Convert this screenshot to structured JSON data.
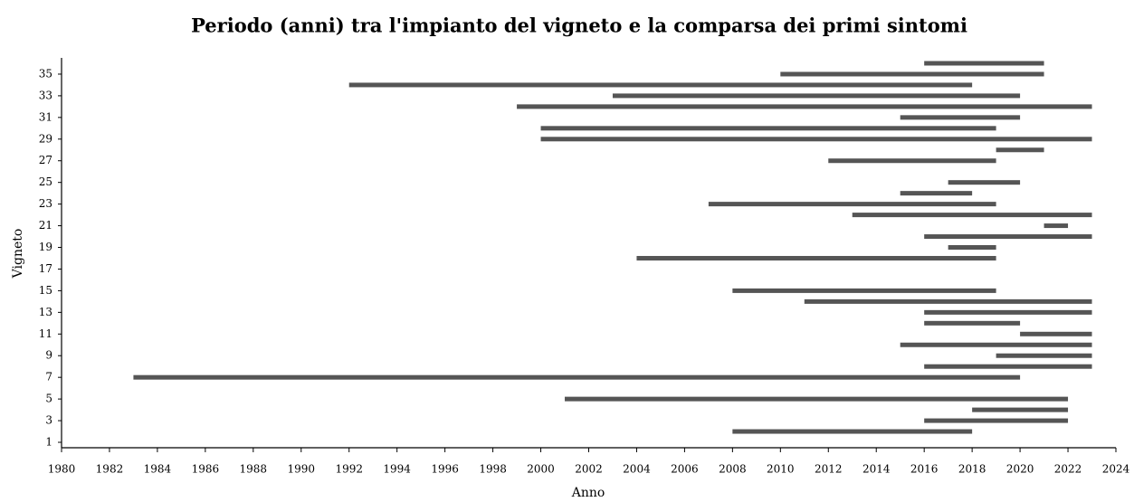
{
  "chart_data": {
    "type": "range-bar",
    "title": "Periodo (anni) tra l'impianto del vigneto e la comparsa dei primi sintomi",
    "x_label": "Anno",
    "y_label": "Vigneto",
    "y": [
      2,
      3,
      4,
      5,
      7,
      8,
      9,
      10,
      11,
      12,
      13,
      14,
      15,
      18,
      19,
      20,
      21,
      22,
      23,
      24,
      25,
      27,
      28,
      29,
      30,
      31,
      32,
      33,
      34,
      35,
      36
    ],
    "start": [
      2008,
      2016,
      2018,
      2001,
      1983,
      2016,
      2019,
      2015,
      2020,
      2016,
      2016,
      2011,
      2008,
      2004,
      2017,
      2016,
      2021,
      2013,
      2007,
      2015,
      2017,
      2012,
      2019,
      2000,
      2000,
      2015,
      1999,
      2003,
      1992,
      2010,
      2016
    ],
    "end": [
      2018,
      2022,
      2022,
      2022,
      2020,
      2023,
      2023,
      2023,
      2023,
      2020,
      2023,
      2023,
      2019,
      2019,
      2019,
      2023,
      2022,
      2023,
      2019,
      2018,
      2020,
      2019,
      2021,
      2023,
      2019,
      2020,
      2023,
      2020,
      2018,
      2021,
      2021
    ],
    "color": "#555555",
    "xlim": [
      1980,
      2024
    ],
    "xticks": [
      1980,
      1982,
      1984,
      1986,
      1988,
      1990,
      1992,
      1994,
      1996,
      1998,
      2000,
      2002,
      2004,
      2006,
      2008,
      2010,
      2012,
      2014,
      2016,
      2018,
      2020,
      2022,
      2024
    ],
    "ylim": [
      0.5,
      36.5
    ],
    "yticks": [
      1,
      3,
      5,
      7,
      9,
      11,
      13,
      15,
      17,
      19,
      21,
      23,
      25,
      27,
      29,
      31,
      33,
      35
    ]
  }
}
